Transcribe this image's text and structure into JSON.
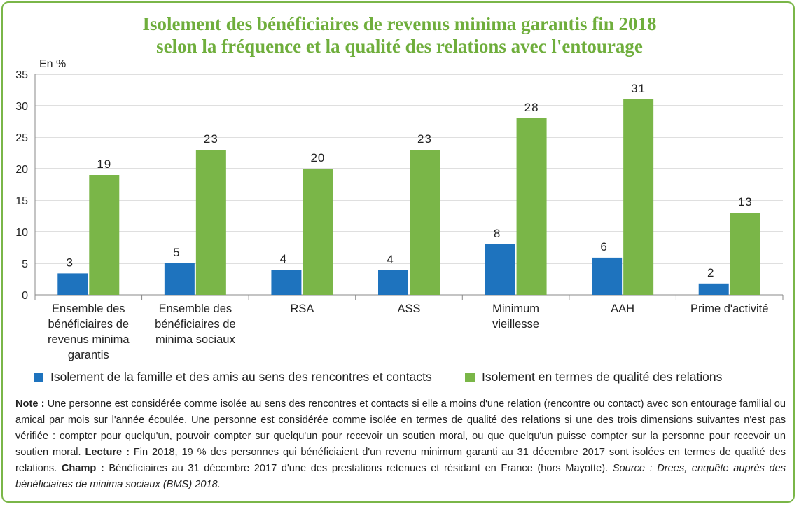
{
  "title_line1": "Isolement des bénéficiaires de revenus minima garantis fin 2018",
  "title_line2": "selon la fréquence et la qualité des relations avec l'entourage",
  "colors": {
    "blue": "#1e73be",
    "green": "#7ab648",
    "title": "#6fae3c",
    "border": "#7ab648"
  },
  "chart_data": {
    "type": "bar",
    "unit_label": "En %",
    "ylim": [
      0,
      35
    ],
    "yticks": [
      0,
      5,
      10,
      15,
      20,
      25,
      30,
      35
    ],
    "grid": true,
    "legend_position": "bottom",
    "categories": [
      [
        "Ensemble des",
        "bénéficiaires de",
        "revenus minima",
        "garantis"
      ],
      [
        "Ensemble des",
        "bénéficiaires de",
        "minima sociaux"
      ],
      [
        "RSA"
      ],
      [
        "ASS"
      ],
      [
        "Minimum",
        "vieillesse"
      ],
      [
        "AAH"
      ],
      [
        "Prime d'activité"
      ]
    ],
    "series": [
      {
        "name": "Isolement de la famille et des amis au sens des rencontres et contacts",
        "color": "#1e73be",
        "values": [
          3.4,
          5,
          4,
          3.9,
          8,
          5.9,
          1.8
        ],
        "labels": [
          "3",
          "5",
          "4",
          "4",
          "8",
          "6",
          "2"
        ]
      },
      {
        "name": "Isolement en termes de qualité des relations",
        "color": "#7ab648",
        "values": [
          19,
          23,
          20,
          23,
          28,
          31,
          13
        ],
        "labels": [
          "19",
          "23",
          "20",
          "23",
          "28",
          "31",
          "13"
        ]
      }
    ]
  },
  "note": {
    "note_label": "Note :",
    "note_text": " Une personne est considérée comme isolée au sens des rencontres et contacts si elle a moins d'une relation (rencontre ou contact) avec son entourage familial ou amical par mois sur l'année écoulée. Une personne est considérée comme isolée en termes de qualité des relations si une des trois dimensions suivantes n'est pas vérifiée : compter pour quelqu'un, pouvoir compter sur quelqu'un pour recevoir un soutien moral, ou que quelqu'un puisse compter sur la personne pour recevoir un soutien moral. ",
    "lecture_label": "Lecture :",
    "lecture_text": " Fin 2018, 19 % des personnes qui bénéficiaient d'un revenu minimum garanti au 31 décembre 2017 sont isolées en termes de qualité des relations. ",
    "champ_label": "Champ :",
    "champ_text": " Bénéficiaires au 31 décembre 2017 d'une des prestations retenues et résidant en France (hors Mayotte). ",
    "source_text": "Source : Drees, enquête auprès des bénéficiaires de minima sociaux (BMS) 2018."
  }
}
